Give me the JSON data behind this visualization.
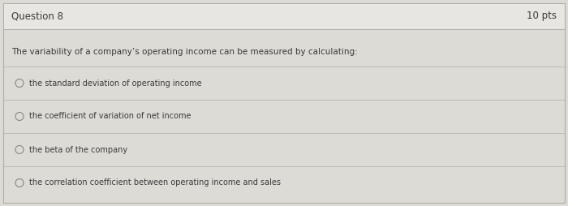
{
  "title": "Question 8",
  "points": "10 pts",
  "question": "The variability of a company’s operating income can be measured by calculating:",
  "options": [
    "the standard deviation of operating income",
    "the coefficient of variation of net income",
    "the beta of the company",
    "the correlation coefficient between operating income and sales"
  ],
  "bg_color": "#dddbd6",
  "header_bg": "#e8e6e2",
  "body_bg": "#e0deda",
  "border_color": "#b0aca4",
  "text_color": "#3a3a3a",
  "circle_color": "#888880",
  "title_fontsize": 8.5,
  "question_fontsize": 7.5,
  "option_fontsize": 7.0,
  "points_fontsize": 8.5
}
